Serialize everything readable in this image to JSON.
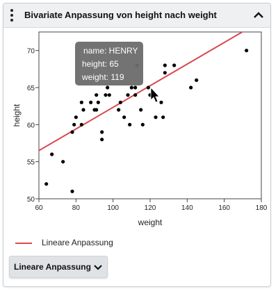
{
  "panel": {
    "title": "Bivariate Anpassung von height nach weight"
  },
  "legend": {
    "fit_label": "Lineare Anpassung"
  },
  "controls": {
    "fit_button_label": "Lineare Anpassung"
  },
  "colors": {
    "fit_line": "#d9494f",
    "points": "#000000",
    "tooltip_bg": "#6b6b6b"
  },
  "tooltip": {
    "name_line": "name: HENRY",
    "height_line": "height: 65",
    "weight_line": "weight: 119"
  },
  "chart_data": {
    "type": "scatter",
    "xlabel": "weight",
    "ylabel": "height",
    "xlim": [
      60,
      180
    ],
    "ylim": [
      50,
      72.5
    ],
    "xticks": [
      60,
      80,
      100,
      120,
      140,
      160,
      180
    ],
    "yticks": [
      50,
      55,
      60,
      65,
      70
    ],
    "grid": false,
    "points": [
      {
        "x": 64,
        "y": 52
      },
      {
        "x": 67,
        "y": 56
      },
      {
        "x": 73,
        "y": 55
      },
      {
        "x": 78,
        "y": 51
      },
      {
        "x": 78,
        "y": 59
      },
      {
        "x": 79,
        "y": 60
      },
      {
        "x": 80,
        "y": 61
      },
      {
        "x": 83,
        "y": 60
      },
      {
        "x": 83,
        "y": 63
      },
      {
        "x": 84,
        "y": 62
      },
      {
        "x": 88,
        "y": 63
      },
      {
        "x": 90,
        "y": 62
      },
      {
        "x": 91,
        "y": 64
      },
      {
        "x": 91,
        "y": 62
      },
      {
        "x": 92,
        "y": 63
      },
      {
        "x": 94,
        "y": 59
      },
      {
        "x": 94,
        "y": 58
      },
      {
        "x": 96,
        "y": 64
      },
      {
        "x": 97,
        "y": 65
      },
      {
        "x": 98,
        "y": 64
      },
      {
        "x": 103,
        "y": 62
      },
      {
        "x": 104,
        "y": 63
      },
      {
        "x": 106,
        "y": 61
      },
      {
        "x": 108,
        "y": 64
      },
      {
        "x": 109,
        "y": 60
      },
      {
        "x": 110,
        "y": 65
      },
      {
        "x": 112,
        "y": 65
      },
      {
        "x": 112,
        "y": 64
      },
      {
        "x": 113,
        "y": 68
      },
      {
        "x": 115,
        "y": 62
      },
      {
        "x": 116,
        "y": 60
      },
      {
        "x": 119,
        "y": 65
      },
      {
        "x": 120,
        "y": 64
      },
      {
        "x": 123,
        "y": 61
      },
      {
        "x": 126,
        "y": 63
      },
      {
        "x": 127,
        "y": 61
      },
      {
        "x": 128,
        "y": 67
      },
      {
        "x": 128,
        "y": 68
      },
      {
        "x": 133,
        "y": 68
      },
      {
        "x": 142,
        "y": 65
      },
      {
        "x": 145,
        "y": 66
      },
      {
        "x": 172,
        "y": 70
      }
    ],
    "fit_line": {
      "x": [
        60,
        180
      ],
      "y": [
        56.5,
        74.0
      ]
    },
    "legend": [
      "Lineare Anpassung"
    ]
  }
}
